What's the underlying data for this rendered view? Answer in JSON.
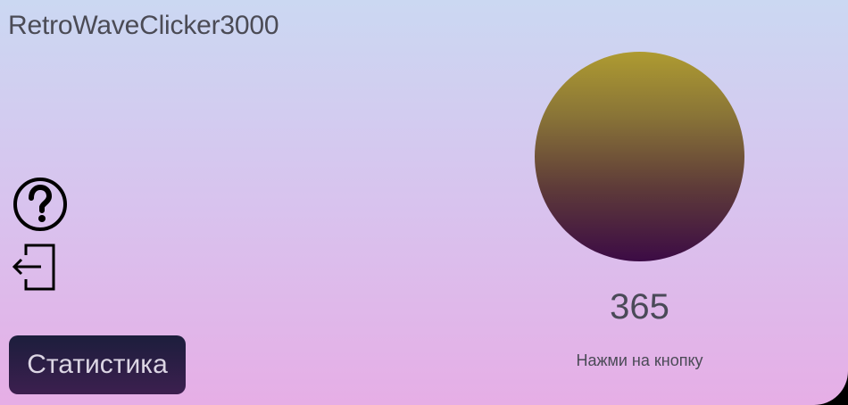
{
  "app": {
    "title": "RetroWaveClicker3000"
  },
  "sidebar": {
    "help_icon": "help-circle-icon",
    "exit_icon": "exit-icon"
  },
  "buttons": {
    "stats_label": "Статистика"
  },
  "clicker": {
    "count": "365",
    "hint": "Нажми на кнопку"
  },
  "colors": {
    "background_top": "#cbd8f2",
    "background_bottom": "#e6aee6",
    "button_dark": "#1c1e3c",
    "circle_top": "#ae9b31",
    "circle_bottom": "#3c0b45"
  }
}
